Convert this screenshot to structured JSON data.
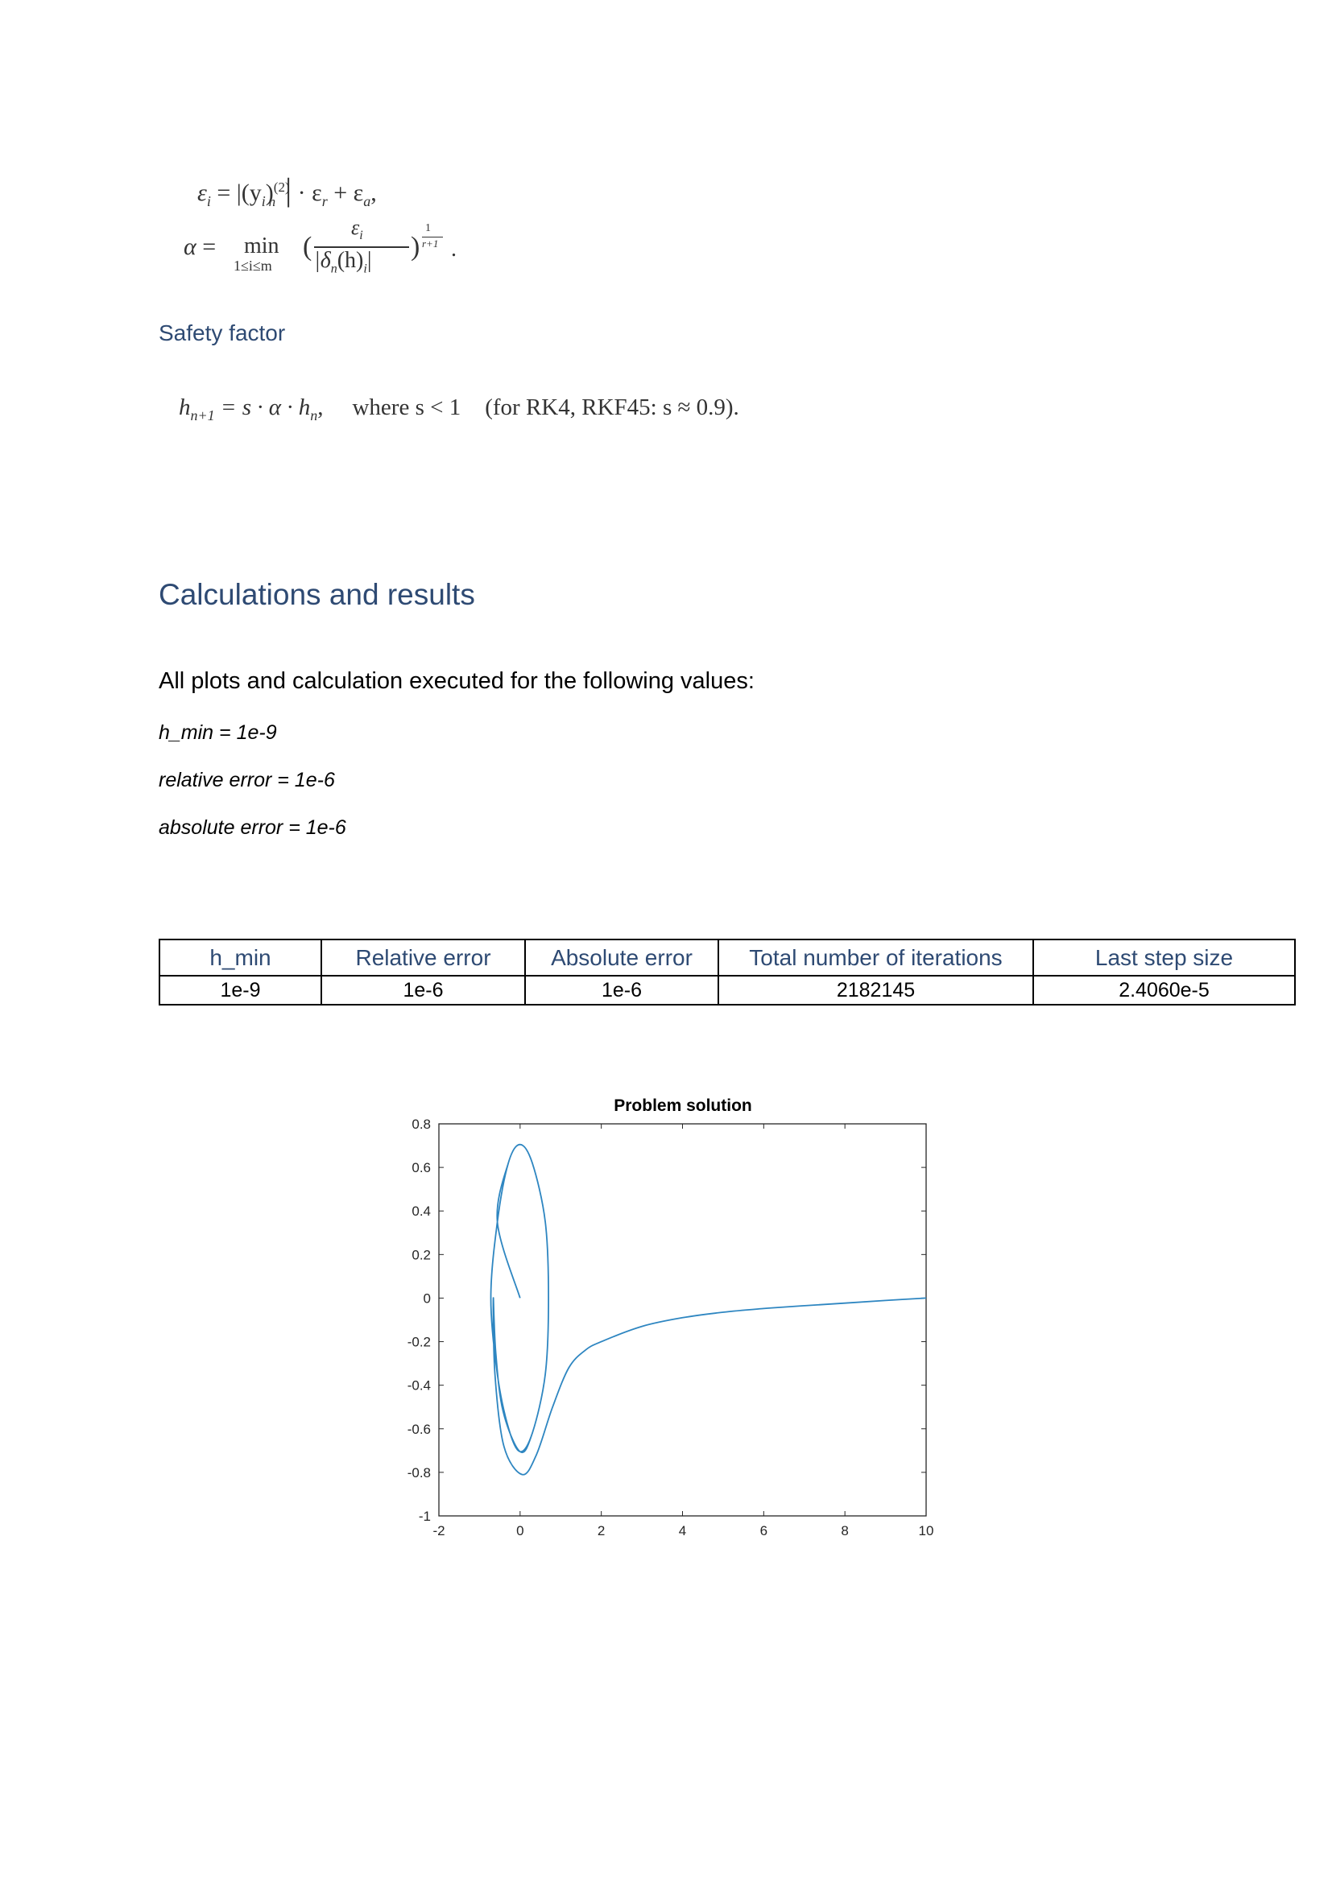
{
  "formulas": {
    "epsilon_i": {
      "lhs": "ε",
      "lhs_sub": "i",
      "eq": " = ",
      "abs_open": "|(y",
      "abs_sub": "i",
      "abs_close": ")",
      "sup": "(2)",
      "sub": "n",
      "bar": "|",
      "rest": " · ε",
      "rest_sub1": "r",
      "plus": " + ε",
      "rest_sub2": "a",
      "end": ","
    },
    "alpha": {
      "lhs": "α",
      "eq": " = ",
      "min": "min",
      "range": "1≤i≤m",
      "num": "ε",
      "num_sub": "i",
      "den": "|δ",
      "den_sub": "n",
      "den_rest": "(h)",
      "den_sub2": "i",
      "den_end": "|",
      "exp_num": "1",
      "exp_den": "r+1",
      "end": "."
    },
    "step": {
      "lhs": "h",
      "lhs_sub": "n+1",
      "body": " = s · α · h",
      "body_sub": "n",
      "body_end": ",",
      "where": "where s < 1",
      "note": "(for RK4, RKF45:  s ≈ 0.9)."
    }
  },
  "headings": {
    "safety_factor": "Safety factor",
    "calculations": "Calculations and results"
  },
  "intro": "All plots and calculation executed for the following values:",
  "params": [
    "h_min = 1e-9",
    "relative error = 1e-6",
    "absolute error = 1e-6"
  ],
  "table": {
    "headers": [
      "h_min",
      "Relative error",
      "Absolute error",
      "Total number of iterations",
      "Last step size"
    ],
    "row": [
      "1e-9",
      "1e-6",
      "1e-6",
      "2182145",
      "2.4060e-5"
    ]
  },
  "chart_data": {
    "type": "line",
    "title": "Problem solution",
    "xlabel": "",
    "ylabel": "",
    "xlim": [
      -2,
      10
    ],
    "ylim": [
      -1,
      0.8
    ],
    "xticks": [
      "-2",
      "0",
      "2",
      "4",
      "6",
      "8",
      "10"
    ],
    "yticks": [
      "0.8",
      "0.6",
      "0.4",
      "0.2",
      "0",
      "-0.2",
      "-0.4",
      "-0.6",
      "-0.8",
      "-1"
    ],
    "grid": false,
    "color": "#2e86c1",
    "series": [
      {
        "points": [
          [
            0.0,
            0.0
          ],
          [
            -0.56,
            0.35
          ],
          [
            -0.29,
            0.62
          ],
          [
            0.0,
            0.705
          ],
          [
            0.3,
            0.62
          ],
          [
            0.62,
            0.35
          ],
          [
            0.7,
            0.0
          ],
          [
            0.62,
            -0.35
          ],
          [
            0.3,
            -0.62
          ],
          [
            0.0,
            -0.705
          ],
          [
            -0.28,
            -0.6
          ],
          [
            -0.56,
            -0.35
          ],
          [
            -0.72,
            0.0
          ],
          [
            -0.56,
            0.35
          ],
          [
            -0.29,
            0.62
          ],
          [
            0.0,
            0.705
          ],
          [
            0.3,
            0.62
          ],
          [
            0.62,
            0.35
          ],
          [
            0.7,
            0.0
          ],
          [
            0.62,
            -0.35
          ],
          [
            0.3,
            -0.62
          ],
          [
            0.0,
            -0.705
          ],
          [
            -0.42,
            -0.52
          ],
          [
            -0.6,
            -0.25
          ],
          [
            -0.66,
            0.0
          ],
          [
            -0.62,
            -0.35
          ],
          [
            -0.4,
            -0.68
          ],
          [
            0.05,
            -0.81
          ],
          [
            0.4,
            -0.72
          ],
          [
            0.8,
            -0.5
          ],
          [
            1.2,
            -0.32
          ],
          [
            1.6,
            -0.24
          ],
          [
            2.0,
            -0.2
          ],
          [
            3.0,
            -0.13
          ],
          [
            4.0,
            -0.09
          ],
          [
            5.0,
            -0.065
          ],
          [
            6.0,
            -0.048
          ],
          [
            7.0,
            -0.035
          ],
          [
            8.0,
            -0.023
          ],
          [
            9.0,
            -0.011
          ],
          [
            10.0,
            0.0
          ]
        ]
      }
    ]
  }
}
